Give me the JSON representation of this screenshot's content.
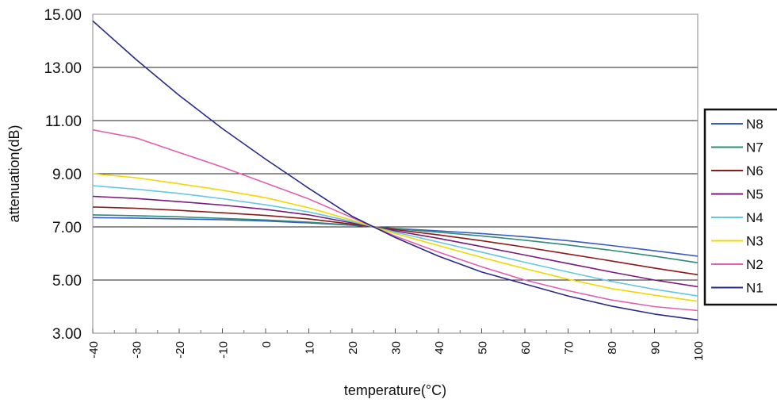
{
  "chart_data": {
    "type": "line",
    "xlabel": "temperature(°C)",
    "ylabel": "attenuation(dB)",
    "xlim": [
      -40,
      100
    ],
    "ylim": [
      3,
      15
    ],
    "x_ticks": [
      -40,
      -30,
      -20,
      -10,
      0,
      10,
      20,
      30,
      40,
      50,
      60,
      70,
      80,
      90,
      100
    ],
    "y_ticks": [
      "3.00",
      "5.00",
      "7.00",
      "9.00",
      "11.00",
      "13.00",
      "15.00"
    ],
    "grid": "horizontal",
    "legend_position": "right",
    "x": [
      -40,
      -30,
      -20,
      -10,
      0,
      10,
      20,
      25,
      30,
      40,
      50,
      60,
      70,
      80,
      90,
      100
    ],
    "series": [
      {
        "name": "N8",
        "color": "#3a5bbf",
        "values": [
          7.35,
          7.33,
          7.3,
          7.27,
          7.22,
          7.15,
          7.06,
          7.0,
          6.94,
          6.85,
          6.75,
          6.63,
          6.48,
          6.3,
          6.1,
          5.9
        ]
      },
      {
        "name": "N7",
        "color": "#2e8b7a",
        "values": [
          7.45,
          7.42,
          7.38,
          7.32,
          7.26,
          7.18,
          7.07,
          7.0,
          6.93,
          6.8,
          6.66,
          6.5,
          6.32,
          6.12,
          5.9,
          5.65
        ]
      },
      {
        "name": "N6",
        "color": "#8b1a1a",
        "values": [
          7.75,
          7.7,
          7.62,
          7.53,
          7.43,
          7.3,
          7.1,
          7.0,
          6.9,
          6.7,
          6.48,
          6.24,
          5.98,
          5.72,
          5.45,
          5.2
        ]
      },
      {
        "name": "N5",
        "color": "#7a1a7a",
        "values": [
          8.15,
          8.07,
          7.95,
          7.82,
          7.66,
          7.45,
          7.15,
          7.0,
          6.85,
          6.57,
          6.26,
          5.94,
          5.62,
          5.3,
          5.0,
          4.75
        ]
      },
      {
        "name": "N4",
        "color": "#66c8e0",
        "values": [
          8.55,
          8.42,
          8.26,
          8.06,
          7.83,
          7.56,
          7.2,
          7.0,
          6.8,
          6.43,
          6.05,
          5.67,
          5.3,
          4.95,
          4.65,
          4.4
        ]
      },
      {
        "name": "N3",
        "color": "#f0d800",
        "values": [
          9.0,
          8.85,
          8.62,
          8.38,
          8.1,
          7.72,
          7.25,
          7.0,
          6.75,
          6.3,
          5.85,
          5.43,
          5.03,
          4.68,
          4.43,
          4.2
        ]
      },
      {
        "name": "N2",
        "color": "#e060b0",
        "values": [
          10.65,
          10.35,
          9.8,
          9.25,
          8.65,
          8.05,
          7.35,
          7.0,
          6.65,
          6.05,
          5.5,
          5.0,
          4.6,
          4.25,
          4.0,
          3.85
        ]
      },
      {
        "name": "N1",
        "color": "#2a2a8a",
        "values": [
          14.75,
          13.3,
          11.95,
          10.7,
          9.55,
          8.45,
          7.4,
          7.0,
          6.6,
          5.9,
          5.3,
          4.85,
          4.4,
          4.02,
          3.72,
          3.5
        ]
      }
    ]
  }
}
